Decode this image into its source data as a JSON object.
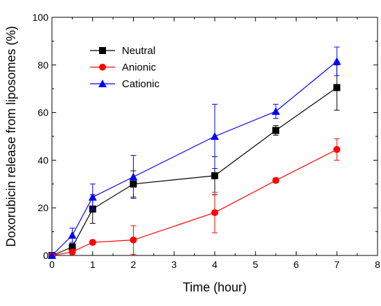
{
  "chart_data": {
    "type": "line",
    "xlabel": "Time (hour)",
    "ylabel": "Doxorubicin release from liposomes (%)",
    "xlim": [
      0,
      8
    ],
    "ylim": [
      0,
      100
    ],
    "x_ticks": [
      "0",
      "1",
      "2",
      "3",
      "4",
      "5",
      "6",
      "7",
      "8"
    ],
    "y_ticks": [
      "0",
      "20",
      "40",
      "60",
      "80",
      "100"
    ],
    "grid": false,
    "legend_position": "top-left",
    "series": [
      {
        "name": "Neutral",
        "color": "#000000",
        "marker": "square",
        "x": [
          0,
          0.5,
          1,
          2,
          4,
          5.5,
          7
        ],
        "y": [
          0,
          3.5,
          19.5,
          30,
          33.5,
          52.5,
          70.5
        ],
        "error": [
          0,
          1.5,
          6,
          5.5,
          8,
          2,
          9.5
        ]
      },
      {
        "name": "Anionic",
        "color": "#ff0000",
        "marker": "circle",
        "x": [
          0,
          0.5,
          1,
          2,
          4,
          5.5,
          7
        ],
        "y": [
          0,
          1.5,
          5.5,
          6.5,
          18,
          31.5,
          44.5
        ],
        "error": [
          0,
          1,
          0.5,
          6,
          8.5,
          1,
          4.5
        ]
      },
      {
        "name": "Cationic",
        "color": "#0000ff",
        "marker": "triangle",
        "x": [
          0,
          0.5,
          1,
          2,
          4,
          5.5,
          7
        ],
        "y": [
          0,
          8.5,
          24.5,
          33,
          50,
          60.5,
          81.5
        ],
        "error": [
          0,
          3,
          5.5,
          9,
          13.5,
          3,
          6
        ]
      }
    ]
  }
}
